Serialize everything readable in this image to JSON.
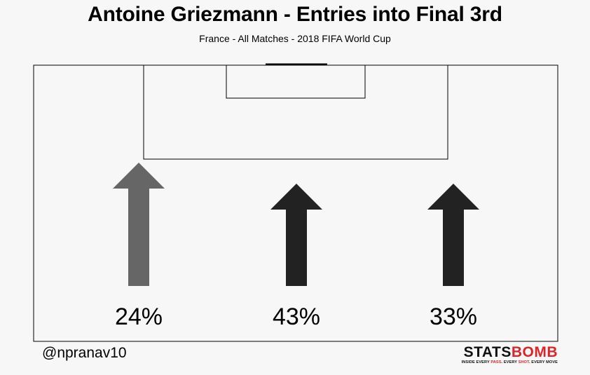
{
  "title": "Antoine Griezmann - Entries into Final 3rd",
  "subtitle": "France - All Matches - 2018 FIFA World Cup",
  "footer": {
    "handle": "@npranav10",
    "logo": {
      "word_part1": "STATS",
      "word_part2": "BOMB",
      "tagline_a": "INSIDE EVERY ",
      "tagline_b": "PASS",
      "tagline_c": ". EVERY ",
      "tagline_d": "SHOT",
      "tagline_e": ". EVERY MOVE"
    }
  },
  "colors": {
    "background": "#f7f7f7",
    "arrow_low": "#666666",
    "arrow_high": "#222222",
    "line": "#000000",
    "brand_red": "#d9262b"
  },
  "chart_data": {
    "type": "bar",
    "categories": [
      "Left",
      "Centre",
      "Right"
    ],
    "values": [
      24,
      43,
      33
    ],
    "value_labels": [
      "24%",
      "43%",
      "33%"
    ],
    "unit": "%",
    "title": "Antoine Griezmann - Entries into Final 3rd",
    "subtitle": "France - All Matches - 2018 FIFA World Cup"
  }
}
